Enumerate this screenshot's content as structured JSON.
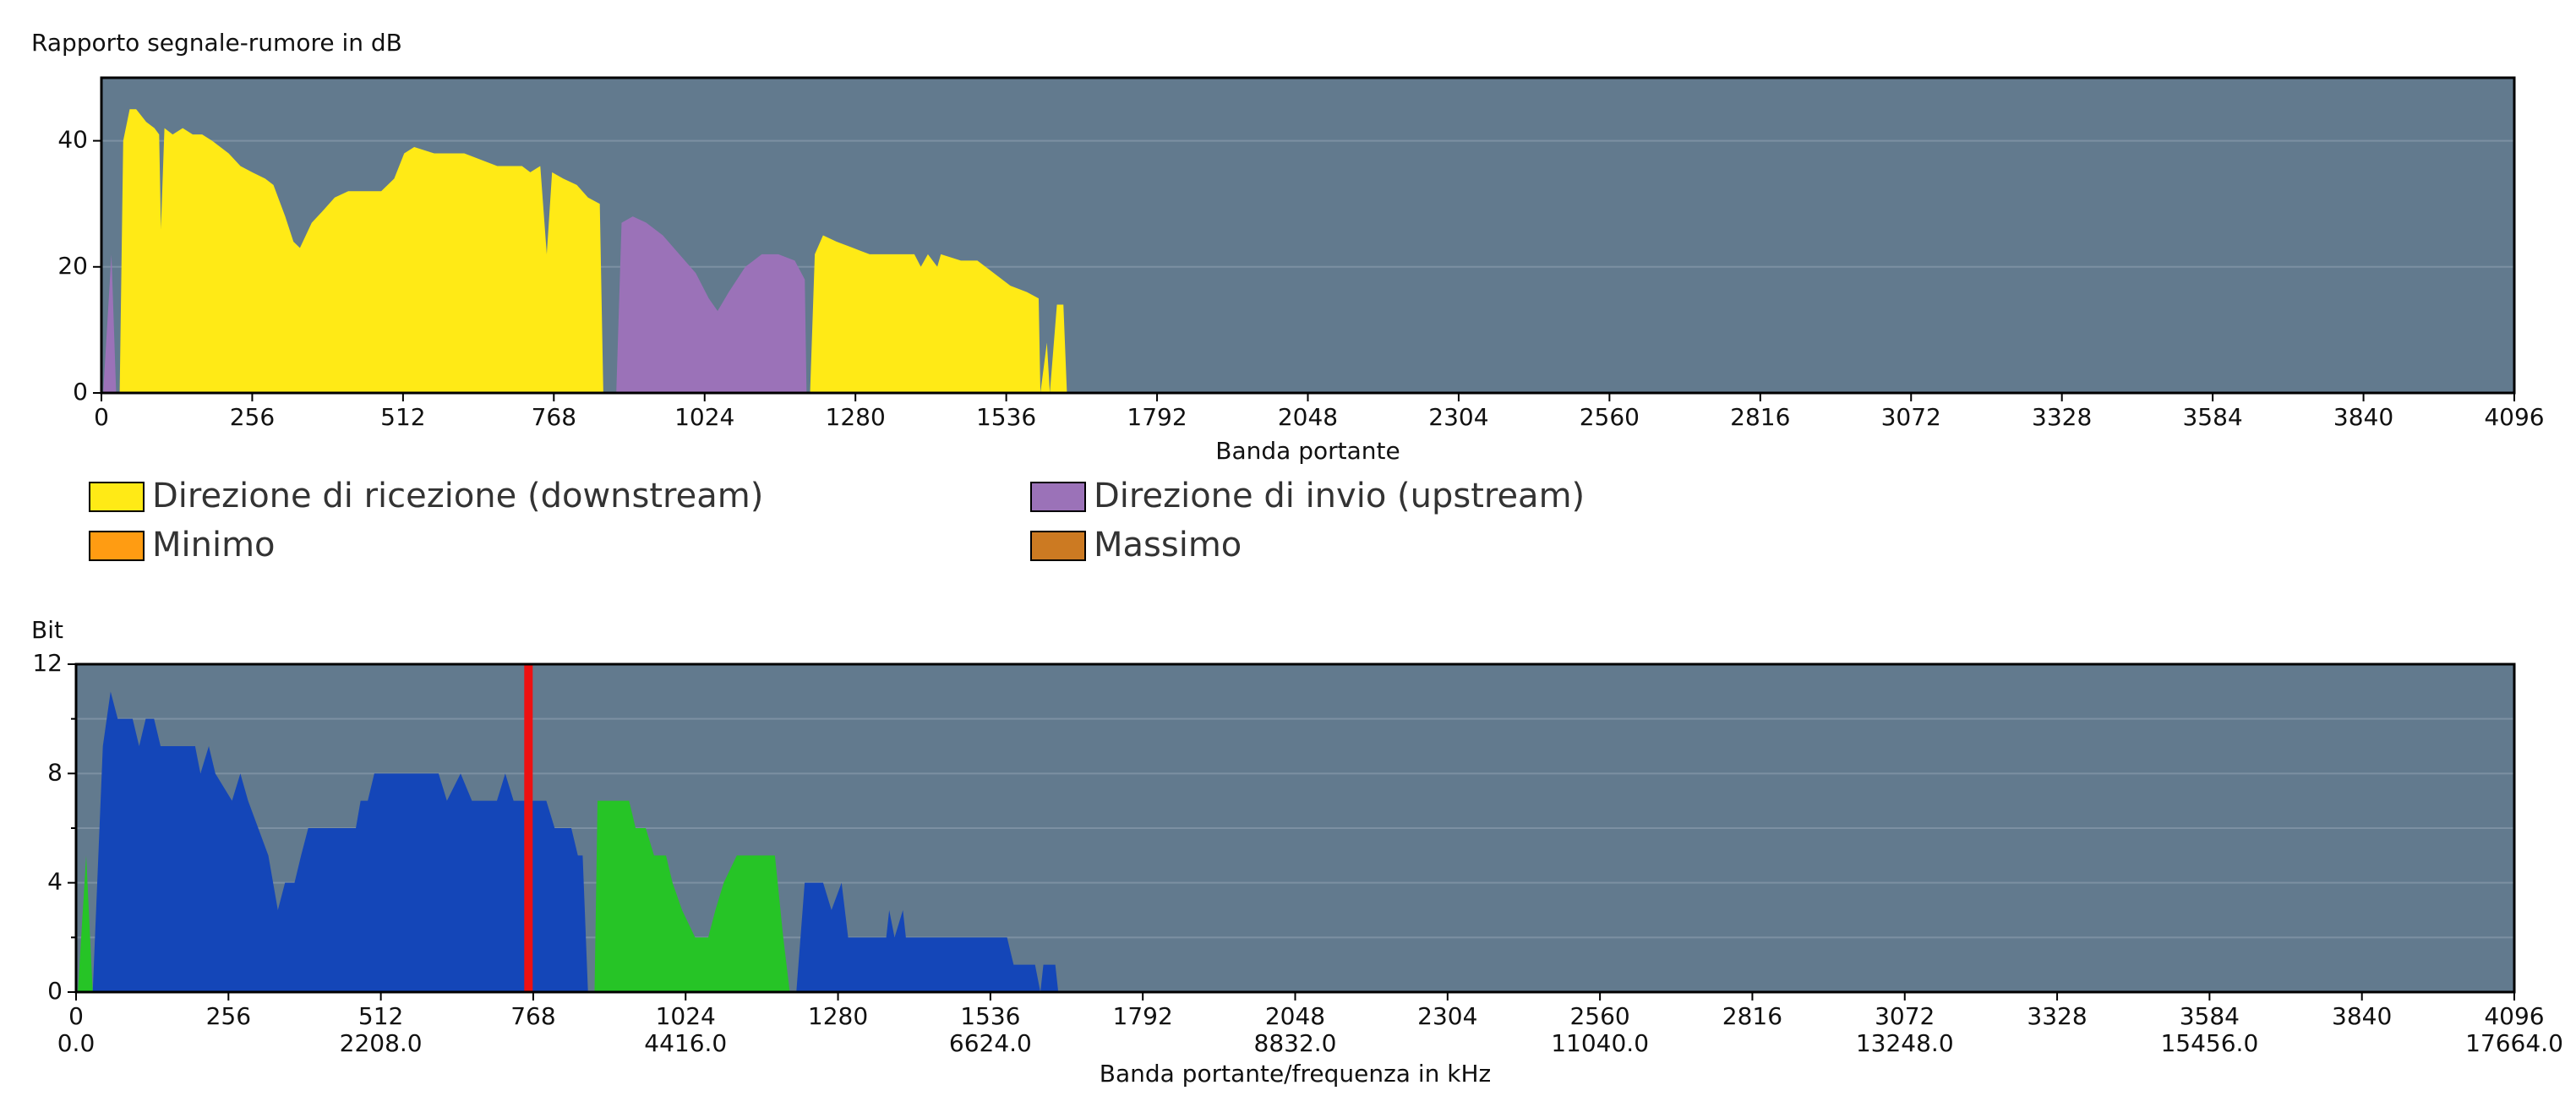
{
  "chart_data": [
    {
      "type": "area",
      "title": "Rapporto segnale-rumore in dB",
      "xlabel": "Banda portante",
      "xlim": [
        0,
        4096
      ],
      "xticks": [
        0,
        256,
        512,
        768,
        1024,
        1280,
        1536,
        1792,
        2048,
        2304,
        2560,
        2816,
        3072,
        3328,
        3584,
        3840,
        4096
      ],
      "ylim": [
        0,
        50
      ],
      "yticks": [
        0,
        20,
        40
      ],
      "grid": true,
      "background": "#627a8e",
      "series": [
        {
          "name": "Direzione di ricezione (downstream)",
          "color": "#ffea16",
          "x": [
            31,
            37,
            48,
            59,
            76,
            90,
            98,
            101,
            107,
            121,
            138,
            155,
            171,
            188,
            216,
            236,
            256,
            278,
            292,
            312,
            326,
            337,
            357,
            377,
            396,
            419,
            475,
            497,
            514,
            531,
            565,
            587,
            616,
            644,
            672,
            714,
            728,
            745,
            756,
            765,
            784,
            807,
            826,
            846,
            852,
            null,
            1203,
            1211,
            1225,
            1248,
            1276,
            1304,
            1346,
            1380,
            1391,
            1403,
            1419,
            1425,
            1459,
            1487,
            1515,
            1543,
            1571,
            1591,
            1594,
            1605,
            1610,
            1622,
            1633,
            1639
          ],
          "values": [
            0,
            40,
            45,
            45,
            43,
            42,
            41,
            26,
            42,
            41,
            42,
            41,
            41,
            40,
            38,
            36,
            35,
            34,
            33,
            28,
            24,
            23,
            27,
            29,
            31,
            32,
            32,
            34,
            38,
            39,
            38,
            38,
            38,
            37,
            36,
            36,
            35,
            36,
            22,
            35,
            34,
            33,
            31,
            30,
            0,
            null,
            0,
            22,
            25,
            24,
            23,
            22,
            22,
            22,
            20,
            22,
            20,
            22,
            21,
            21,
            19,
            17,
            16,
            15,
            0,
            8,
            0,
            14,
            14,
            0
          ]
        },
        {
          "name": "Direzione di invio (upstream)",
          "color": "#9b72b8",
          "x": [
            3,
            17,
            25,
            null,
            874,
            883,
            902,
            925,
            953,
            981,
            1009,
            1031,
            1046,
            1065,
            1093,
            1121,
            1149,
            1177,
            1194,
            1197
          ],
          "values": [
            0,
            22,
            0,
            null,
            0,
            27,
            28,
            27,
            25,
            22,
            19,
            15,
            13,
            16,
            20,
            22,
            22,
            21,
            18,
            0
          ]
        },
        {
          "name": "Minimo",
          "color": "#ff9c12"
        },
        {
          "name": "Massimo",
          "color": "#cc7a22"
        }
      ]
    },
    {
      "type": "area",
      "title": "Bit",
      "xlabel": "Banda portante/frequenza in kHz",
      "xlim": [
        0,
        4096
      ],
      "xticks": [
        0,
        256,
        512,
        768,
        1024,
        1280,
        1536,
        1792,
        2048,
        2304,
        2560,
        2816,
        3072,
        3328,
        3584,
        3840,
        4096
      ],
      "x2lim": [
        0,
        17664
      ],
      "x2ticks": [
        {
          "value": 0,
          "label": "0.0"
        },
        {
          "value": 2208,
          "label": "2208.0"
        },
        {
          "value": 4416,
          "label": "4416.0"
        },
        {
          "value": 6624,
          "label": "6624.0"
        },
        {
          "value": 8832,
          "label": "8832.0"
        },
        {
          "value": 11040,
          "label": "11040.0"
        },
        {
          "value": 13248,
          "label": "13248.0"
        },
        {
          "value": 15456,
          "label": "15456.0"
        },
        {
          "value": 17664,
          "label": "17664.0"
        }
      ],
      "ylim": [
        0,
        12
      ],
      "yticks": [
        0,
        4,
        8,
        12
      ],
      "yminor_ticks": [
        2,
        6,
        10
      ],
      "grid": true,
      "background": "#627a8e",
      "marker_x": 760,
      "marker_color": "#ee1111",
      "series": [
        {
          "color": "#1446b8",
          "x": [
            28,
            45,
            58,
            70,
            95,
            106,
            117,
            131,
            142,
            200,
            209,
            223,
            234,
            262,
            276,
            289,
            306,
            323,
            339,
            351,
            367,
            378,
            390,
            470,
            478,
            490,
            501,
            609,
            623,
            646,
            665,
            707,
            721,
            735,
            790,
            804,
            832,
            843,
            851,
            860,
            null,
            1210,
            1224,
            1255,
            1269,
            1286,
            1297,
            1361,
            1366,
            1375,
            1389,
            1394,
            1564,
            1575,
            1611,
            1620,
            1625,
            1645,
            1650
          ],
          "values": [
            0,
            9,
            11,
            10,
            10,
            9,
            10,
            10,
            9,
            9,
            8,
            9,
            8,
            7,
            8,
            7,
            6,
            5,
            3,
            4,
            4,
            5,
            6,
            6,
            7,
            7,
            8,
            8,
            7,
            8,
            7,
            7,
            8,
            7,
            7,
            6,
            6,
            5,
            5,
            0,
            null,
            0,
            4,
            4,
            3,
            4,
            2,
            2,
            3,
            2,
            3,
            2,
            2,
            1,
            1,
            0,
            1,
            1,
            0
          ]
        },
        {
          "color": "#26c426",
          "x": [
            3,
            17,
            28,
            null,
            871,
            876,
            929,
            940,
            957,
            971,
            991,
            1002,
            1018,
            1040,
            1062,
            1074,
            1088,
            1110,
            1174,
            1188,
            1199
          ],
          "values": [
            0,
            5,
            0,
            null,
            0,
            7,
            7,
            6,
            6,
            5,
            5,
            4,
            3,
            2,
            2,
            3,
            4,
            5,
            5,
            2,
            0
          ]
        }
      ]
    }
  ]
}
